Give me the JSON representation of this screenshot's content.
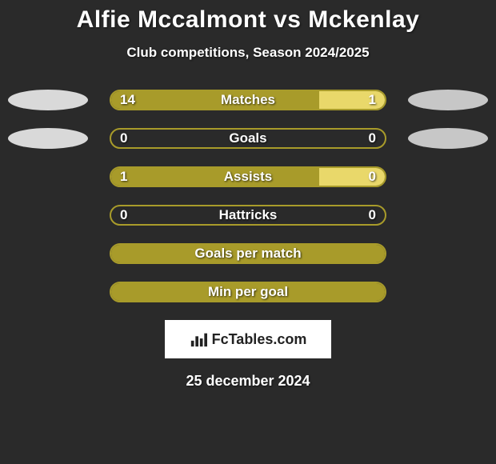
{
  "title": "Alfie Mccalmont vs Mckenlay",
  "subtitle": "Club competitions, Season 2024/2025",
  "date": "25 december 2024",
  "logo_text": "FcTables.com",
  "background_color": "#2a2a2a",
  "colors": {
    "border": "#a89b2a",
    "left_fill": "#a89b2a",
    "right_fill": "#e9d86a",
    "ellipse_left": "#d9d9d9",
    "ellipse_right": "#c7c7c7"
  },
  "rows": [
    {
      "name": "Matches",
      "left": "14",
      "right": "1",
      "left_pct": 76,
      "right_pct": 24,
      "show_ellipses": true
    },
    {
      "name": "Goals",
      "left": "0",
      "right": "0",
      "left_pct": 0,
      "right_pct": 0,
      "show_ellipses": true
    },
    {
      "name": "Assists",
      "left": "1",
      "right": "0",
      "left_pct": 76,
      "right_pct": 24,
      "show_ellipses": false
    },
    {
      "name": "Hattricks",
      "left": "0",
      "right": "0",
      "left_pct": 0,
      "right_pct": 0,
      "show_ellipses": false
    },
    {
      "name": "Goals per match",
      "left": "",
      "right": "",
      "left_pct": 100,
      "right_pct": 0,
      "show_ellipses": false
    },
    {
      "name": "Min per goal",
      "left": "",
      "right": "",
      "left_pct": 100,
      "right_pct": 0,
      "show_ellipses": false
    }
  ]
}
